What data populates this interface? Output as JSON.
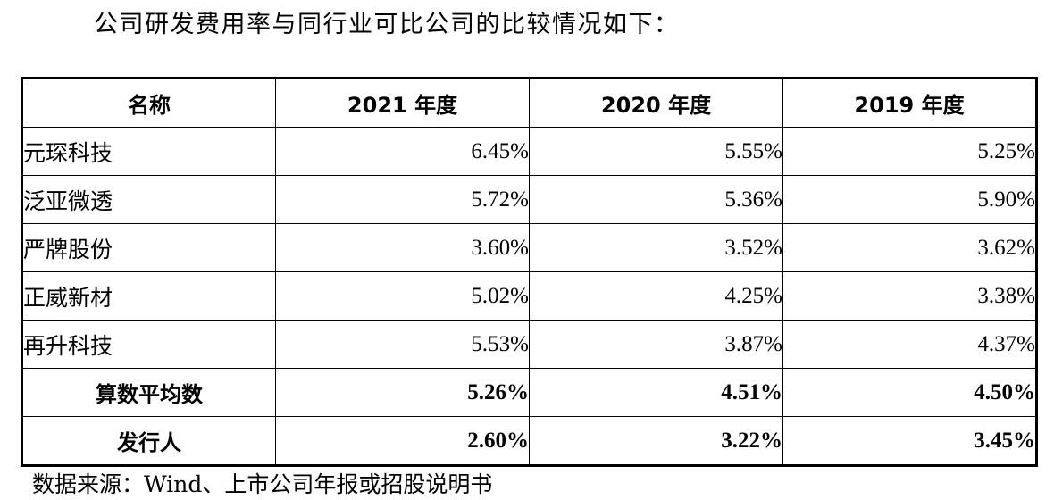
{
  "intro_text": "公司研发费用率与同行业可比公司的比较情况如下：",
  "table": {
    "headers": [
      "名称",
      "2021 年度",
      "2020 年度",
      "2019 年度"
    ],
    "rows": [
      {
        "name": "元琛科技",
        "values": [
          "6.45%",
          "5.55%",
          "5.25%"
        ]
      },
      {
        "name": "泛亚微透",
        "values": [
          "5.72%",
          "5.36%",
          "5.90%"
        ]
      },
      {
        "name": "严牌股份",
        "values": [
          "3.60%",
          "3.52%",
          "3.62%"
        ]
      },
      {
        "name": "正威新材",
        "values": [
          "5.02%",
          "4.25%",
          "3.38%"
        ]
      },
      {
        "name": "再升科技",
        "values": [
          "5.53%",
          "3.87%",
          "4.37%"
        ]
      }
    ],
    "summary_rows": [
      {
        "name": "算数平均数",
        "values": [
          "5.26%",
          "4.51%",
          "4.50%"
        ]
      },
      {
        "name": "发行人",
        "values": [
          "2.60%",
          "3.22%",
          "3.45%"
        ]
      }
    ]
  },
  "source_text": "数据来源：Wind、上市公司年报或招股说明书"
}
